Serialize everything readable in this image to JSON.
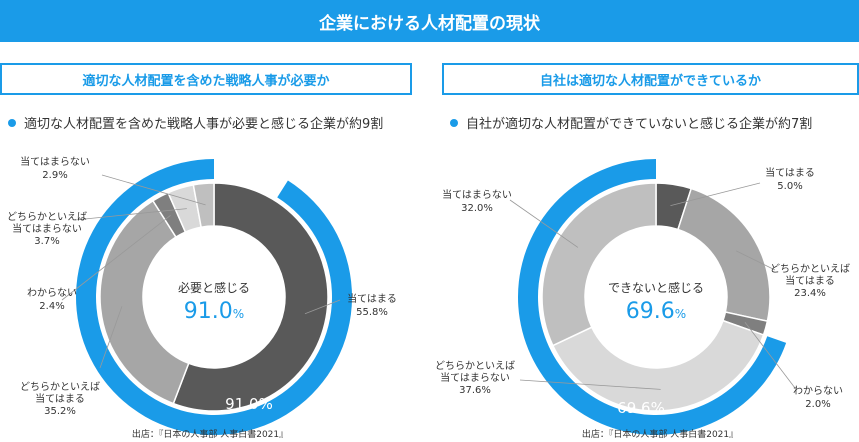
{
  "page_title": "企業における人材配置の現状",
  "chart_data": [
    {
      "type": "pie",
      "panel_title": "適切な人材配置を含めた戦略人事が必要か",
      "bullet": "適切な人材配置を含めた戦略人事が必要と感じる企業が約9割",
      "center_label": "必要と感じる",
      "center_value": "91.0",
      "center_unit": "%",
      "outer_value": 91.0,
      "outer_label": "91.0%",
      "slices": [
        {
          "label": "当てはまる",
          "value": 55.8,
          "display": "55.8%"
        },
        {
          "label": "どちらかといえば当てはまる",
          "line1": "どちらかといえば",
          "line2": "当てはまる",
          "value": 35.2,
          "display": "35.2%"
        },
        {
          "label": "わからない",
          "value": 2.4,
          "display": "2.4%"
        },
        {
          "label": "どちらかといえば当てはまらない",
          "line1": "どちらかといえば",
          "line2": "当てはまらない",
          "value": 3.7,
          "display": "3.7%"
        },
        {
          "label": "当てはまらない",
          "value": 2.9,
          "display": "2.9%"
        }
      ],
      "source": "出店：『日本の人事部 人事白書2021』"
    },
    {
      "type": "pie",
      "panel_title": "自社は適切な人材配置ができているか",
      "bullet": "自社が適切な人材配置ができていないと感じる企業が約7割",
      "center_label": "できないと感じる",
      "center_value": "69.6",
      "center_unit": "%",
      "outer_value": 69.6,
      "outer_label": "69.6%",
      "slices": [
        {
          "label": "当てはまる",
          "value": 5.0,
          "display": "5.0%"
        },
        {
          "label": "どちらかといえば当てはまる",
          "line1": "どちらかといえば",
          "line2": "当てはまる",
          "value": 23.4,
          "display": "23.4%"
        },
        {
          "label": "わからない",
          "value": 2.0,
          "display": "2.0%"
        },
        {
          "label": "どちらかといえば当てはまらない",
          "line1": "どちらかといえば",
          "line2": "当てはまらない",
          "value": 37.6,
          "display": "37.6%"
        },
        {
          "label": "当てはまらない",
          "value": 32.0,
          "display": "32.0%"
        }
      ],
      "source": "出店：『日本の人事部 人事白書2021』"
    }
  ],
  "colors": {
    "accent": "#1a9be8",
    "slices": [
      "#595959",
      "#a6a6a6",
      "#7f7f7f",
      "#d9d9d9",
      "#bfbfbf"
    ]
  }
}
